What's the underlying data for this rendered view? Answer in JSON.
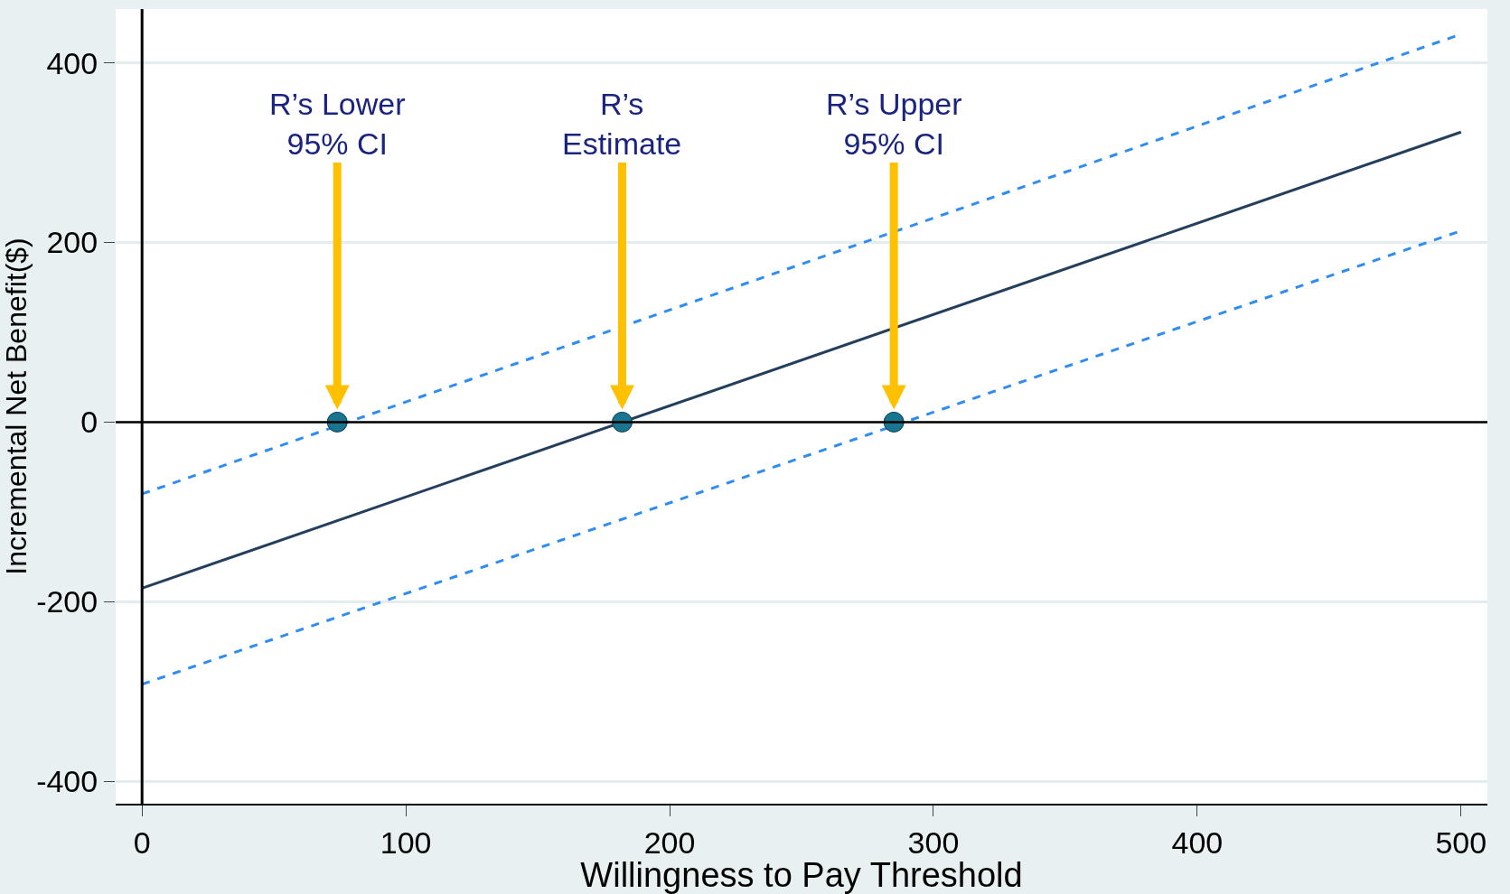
{
  "chart_data": {
    "type": "line",
    "xlabel": "Willingness to Pay Threshold",
    "ylabel": "Incremental Net Benefit($)",
    "xlim": [
      -10,
      510
    ],
    "xticks": [
      0,
      100,
      200,
      300,
      400,
      500
    ],
    "ylim": [
      -425,
      460
    ],
    "yticks": [
      -400,
      -200,
      0,
      200,
      400
    ],
    "grid": "y",
    "series": [
      {
        "x": [
          0,
          500
        ],
        "values": [
          -80,
          432
        ],
        "color": "#2f8cf0",
        "line_style": "dashed",
        "marker": "none"
      },
      {
        "x": [
          0,
          500
        ],
        "values": [
          -185,
          323
        ],
        "color": "#243f5c",
        "line_style": "solid",
        "marker": "none"
      },
      {
        "x": [
          0,
          500
        ],
        "values": [
          -292,
          213
        ],
        "color": "#2f8cf0",
        "line_style": "dashed",
        "marker": "none"
      },
      {
        "type": "scatter",
        "x": [
          74,
          182,
          285
        ],
        "values": [
          0,
          0,
          0
        ],
        "color": "#1a7590",
        "marker": "circle"
      }
    ],
    "ref_lines": [
      {
        "axis": "y",
        "value": 0,
        "color": "#000000",
        "line_style": "solid"
      }
    ],
    "annotations": [
      {
        "text": "R’s Lower\n95% CI",
        "x": 74,
        "y": 0
      },
      {
        "text": "R’s\nEstimate",
        "x": 182,
        "y": 0
      },
      {
        "text": "R’s Upper\n95% CI",
        "x": 285,
        "y": 0
      }
    ]
  }
}
